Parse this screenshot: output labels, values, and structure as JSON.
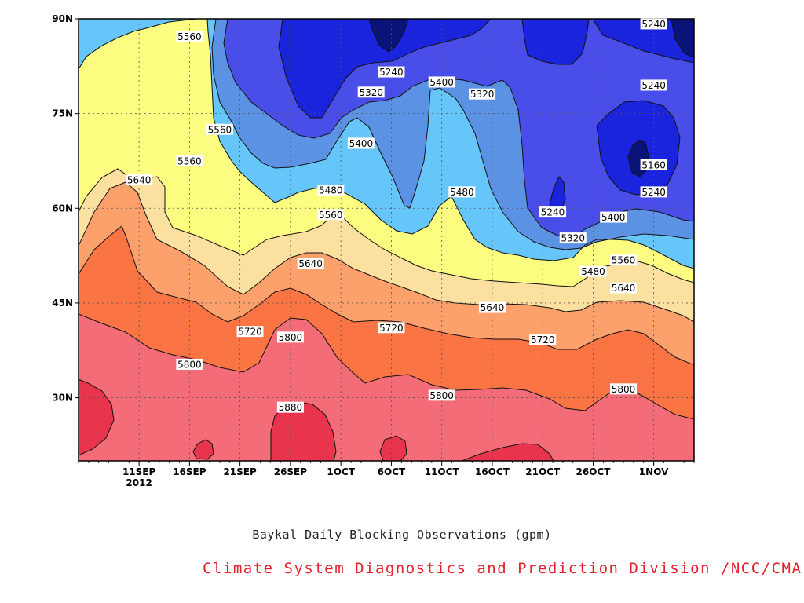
{
  "chart_data": {
    "type": "heatmap",
    "subtype": "filled-contour",
    "title": "",
    "caption": "Baykal Daily Blocking Observations (gpm)",
    "credit": "Climate System Diagnostics and Prediction Division /NCC/CMA",
    "x_axis": {
      "start_date": "2012-09-05",
      "end_date": "2012-11-05",
      "ticks": [
        {
          "label": "11SEP",
          "sublabel": "2012",
          "date": "2012-09-11"
        },
        {
          "label": "16SEP",
          "date": "2012-09-16"
        },
        {
          "label": "21SEP",
          "date": "2012-09-21"
        },
        {
          "label": "26SEP",
          "date": "2012-09-26"
        },
        {
          "label": "1OCT",
          "date": "2012-10-01"
        },
        {
          "label": "6OCT",
          "date": "2012-10-06"
        },
        {
          "label": "11OCT",
          "date": "2012-10-11"
        },
        {
          "label": "16OCT",
          "date": "2012-10-16"
        },
        {
          "label": "21OCT",
          "date": "2012-10-21"
        },
        {
          "label": "26OCT",
          "date": "2012-10-26"
        },
        {
          "label": "1NOV",
          "date": "2012-11-01"
        }
      ]
    },
    "y_axis": {
      "range": [
        20,
        90
      ],
      "ticks": [
        {
          "label": "30N",
          "value": 30
        },
        {
          "label": "45N",
          "value": 45
        },
        {
          "label": "60N",
          "value": 60
        },
        {
          "label": "75N",
          "value": 75
        },
        {
          "label": "90N",
          "value": 90
        }
      ]
    },
    "grid": "dotted",
    "contour_levels": [
      5160,
      5240,
      5320,
      5400,
      5480,
      5560,
      5640,
      5720,
      5800,
      5880
    ],
    "fill_colors": {
      "below_5160": "#0a1478",
      "5160_5240": "#1a24dc",
      "5240_5320": "#4a4ee8",
      "5320_5400": "#5b92e4",
      "5400_5480": "#66c6fa",
      "5480_5560": "#fcfc80",
      "5560_5640": "#fce0a0",
      "5640_5720": "#fca06c",
      "5720_5800": "#fa7444",
      "5800_5880": "#f46c78",
      "above_5880": "#e8344c"
    },
    "contour_labels": [
      {
        "text": "5560",
        "date": "2012-09-16",
        "lat": 87.2
      },
      {
        "text": "5560",
        "date": "2012-09-19",
        "lat": 72.5
      },
      {
        "text": "5560",
        "date": "2012-09-16",
        "lat": 67.5
      },
      {
        "text": "5640",
        "date": "2012-09-11",
        "lat": 64.5
      },
      {
        "text": "5240",
        "date": "2012-10-06",
        "lat": 81.6
      },
      {
        "text": "5320",
        "date": "2012-10-04",
        "lat": 78.4
      },
      {
        "text": "5400",
        "date": "2012-10-03",
        "lat": 70.3
      },
      {
        "text": "5480",
        "date": "2012-09-30",
        "lat": 62.9
      },
      {
        "text": "5560",
        "date": "2012-09-30",
        "lat": 59.0
      },
      {
        "text": "5640",
        "date": "2012-09-28",
        "lat": 51.3
      },
      {
        "text": "5400",
        "date": "2012-10-11",
        "lat": 80.0
      },
      {
        "text": "5320",
        "date": "2012-10-15",
        "lat": 78.1
      },
      {
        "text": "5480",
        "date": "2012-10-13",
        "lat": 62.6
      },
      {
        "text": "5240",
        "date": "2012-11-01",
        "lat": 89.2
      },
      {
        "text": "5240",
        "date": "2012-11-01",
        "lat": 79.5
      },
      {
        "text": "5160",
        "date": "2012-11-01",
        "lat": 66.9
      },
      {
        "text": "5240",
        "date": "2012-11-01",
        "lat": 62.6
      },
      {
        "text": "5240",
        "date": "2012-10-22",
        "lat": 59.4
      },
      {
        "text": "5400",
        "date": "2012-10-28",
        "lat": 58.6
      },
      {
        "text": "5320",
        "date": "2012-10-24",
        "lat": 55.3
      },
      {
        "text": "5480",
        "date": "2012-10-26",
        "lat": 50.0
      },
      {
        "text": "5560",
        "date": "2012-10-29",
        "lat": 51.8
      },
      {
        "text": "5640",
        "date": "2012-10-29",
        "lat": 47.4
      },
      {
        "text": "5640",
        "date": "2012-10-16",
        "lat": 44.3
      },
      {
        "text": "5720",
        "date": "2012-09-22",
        "lat": 40.5
      },
      {
        "text": "5800",
        "date": "2012-09-26",
        "lat": 39.6
      },
      {
        "text": "5720",
        "date": "2012-10-06",
        "lat": 41.1
      },
      {
        "text": "5720",
        "date": "2012-10-21",
        "lat": 39.2
      },
      {
        "text": "5800",
        "date": "2012-09-16",
        "lat": 35.3
      },
      {
        "text": "5880",
        "date": "2012-09-26",
        "lat": 28.5
      },
      {
        "text": "5800",
        "date": "2012-10-11",
        "lat": 30.4
      },
      {
        "text": "5800",
        "date": "2012-10-29",
        "lat": 31.4
      }
    ]
  }
}
